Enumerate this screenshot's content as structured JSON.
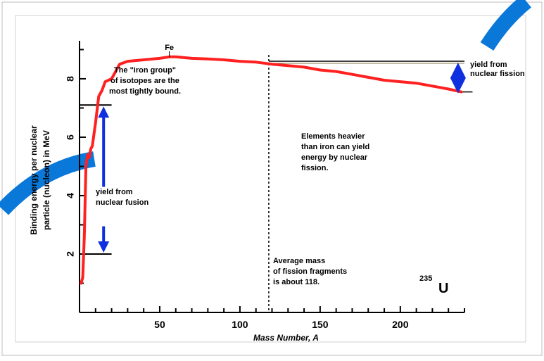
{
  "chart_data": {
    "type": "line",
    "title": "",
    "xlabel": "Mass Number, A",
    "ylabel_line1": "Binding energy per nuclear",
    "ylabel_line2": "particle (nucleon) in MeV",
    "xlim": [
      0,
      240
    ],
    "ylim": [
      0,
      9.3
    ],
    "xticks": [
      50,
      100,
      150,
      200
    ],
    "yticks": [
      2,
      4,
      6,
      8
    ],
    "grid": false,
    "series": [
      {
        "color": "#ff2020",
        "x": [
          1,
          2,
          3,
          4,
          5,
          6,
          7,
          8,
          10,
          12,
          14,
          16,
          20,
          25,
          30,
          40,
          50,
          56,
          60,
          70,
          80,
          90,
          100,
          110,
          120,
          130,
          140,
          150,
          160,
          170,
          180,
          190,
          200,
          210,
          220,
          230,
          238
        ],
        "values": [
          1.0,
          1.2,
          2.6,
          5.0,
          5.4,
          5.3,
          5.6,
          5.7,
          6.5,
          7.4,
          7.6,
          7.9,
          8.0,
          8.5,
          8.6,
          8.65,
          8.7,
          8.75,
          8.75,
          8.7,
          8.68,
          8.65,
          8.6,
          8.57,
          8.5,
          8.45,
          8.4,
          8.3,
          8.25,
          8.15,
          8.05,
          7.95,
          7.9,
          7.85,
          7.75,
          7.65,
          7.55
        ]
      }
    ],
    "annotations": {
      "fe": "Fe",
      "iron_group": [
        "The \"iron group\"",
        "of isotopes are the",
        "most tightly bound."
      ],
      "heavier": [
        "Elements heavier",
        "than iron can yield",
        "energy by nuclear",
        "fission."
      ],
      "fission_yield": [
        "yield from",
        "nuclear fission"
      ],
      "fusion_yield": [
        "yield from",
        "nuclear fusion"
      ],
      "avg_mass": [
        "Average mass",
        "of fission fragments",
        "is about 118."
      ],
      "u_mass": "235",
      "u_symbol": "U"
    },
    "reference_lines": {
      "fission_fragment_mass": 118,
      "fusion_top": 7.1,
      "fusion_bottom": 2.0,
      "fission_top": 8.6,
      "fission_bottom": 7.55
    }
  },
  "colors": {
    "curve": "#ff2020",
    "arrow": "#1030e0",
    "accent_stroke": "#0a78d8",
    "frame": "#bbbbbb"
  }
}
